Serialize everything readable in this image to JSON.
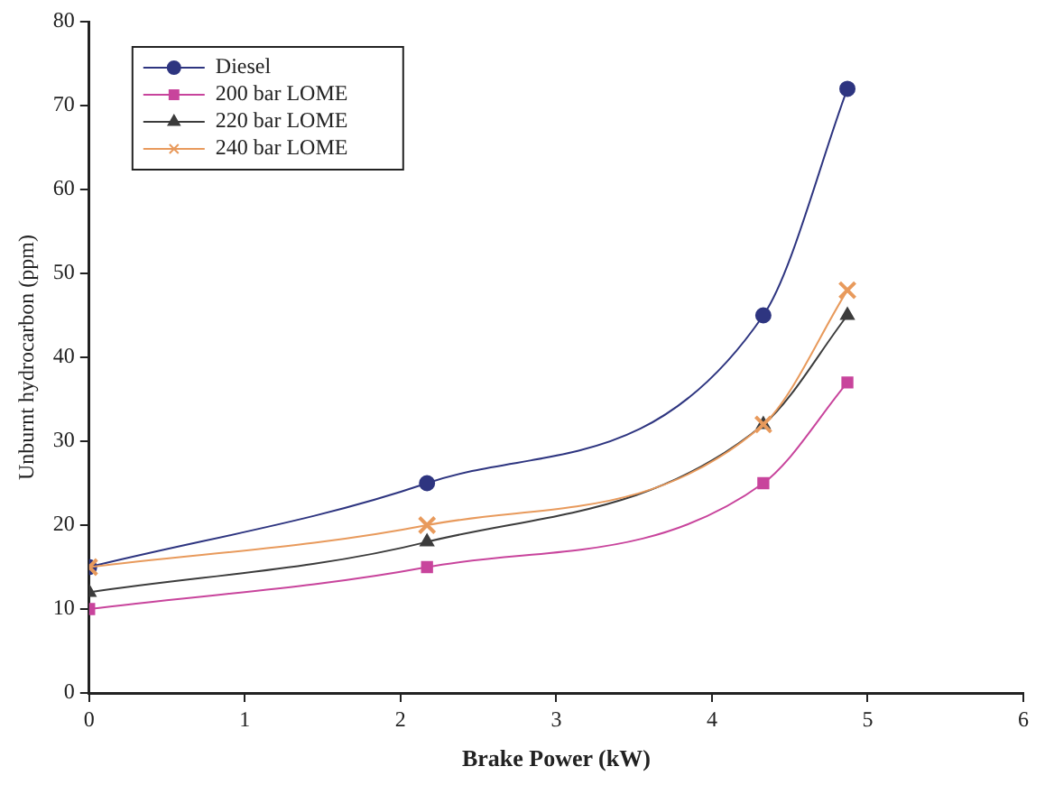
{
  "chart_data": {
    "type": "line",
    "xlabel": "Brake Power (kW)",
    "ylabel": "Unburnt hydrocarbon (ppm)",
    "x": [
      0,
      2.17,
      4.33,
      4.87
    ],
    "series": [
      {
        "name": "Diesel",
        "color": "#2e3580",
        "values": [
          15,
          25,
          45,
          72
        ],
        "marker": "circle"
      },
      {
        "name": "200 bar LOME",
        "color": "#c8449c",
        "values": [
          10,
          15,
          25,
          37
        ],
        "marker": "square"
      },
      {
        "name": "220 bar LOME",
        "color": "#3c3c3c",
        "values": [
          12,
          18,
          32,
          45
        ],
        "marker": "triangle"
      },
      {
        "name": "240 bar LOME",
        "color": "#e89a5c",
        "values": [
          15,
          20,
          32,
          48
        ],
        "marker": "cross"
      }
    ],
    "xlim": [
      0,
      6
    ],
    "xticks": [
      0,
      1,
      2,
      3,
      4,
      5,
      6
    ],
    "ylim": [
      0,
      80
    ],
    "yticks": [
      0,
      10,
      20,
      30,
      40,
      50,
      60,
      70,
      80
    ],
    "grid": false,
    "legend": "top left",
    "line_style": "solid"
  }
}
